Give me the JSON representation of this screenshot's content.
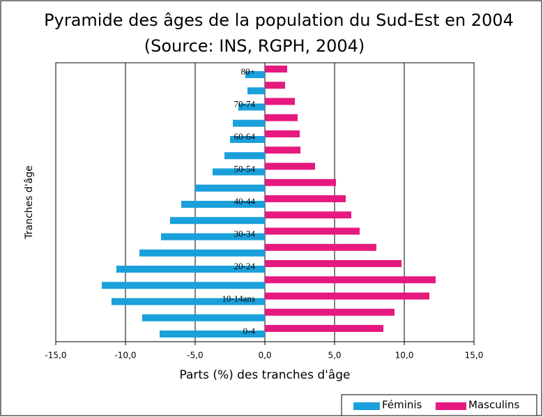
{
  "chart_data": {
    "type": "bar",
    "orientation": "horizontal",
    "stacked": false,
    "title": "Pyramide des âges de la population du Sud-Est en 2004",
    "subtitle": "(Source: INS, RGPH, 2004)",
    "x_label": "Parts (%) des tranches d'âge",
    "y_label": "Tranches d'âge",
    "categories": [
      "0-4",
      null,
      "10-14ans",
      null,
      "20-24",
      null,
      "30-34",
      null,
      "40-44",
      null,
      "50-54",
      null,
      "60-64",
      null,
      "70-74",
      null,
      "80+"
    ],
    "series": [
      {
        "name": "Féminis",
        "color": "#1aa0db",
        "values": [
          -7.55,
          -8.8,
          -11.0,
          -11.7,
          -10.65,
          -9.0,
          -7.45,
          -6.8,
          -6.0,
          -5.0,
          -3.75,
          -2.9,
          -2.5,
          -2.3,
          -1.9,
          -1.25,
          -1.4
        ]
      },
      {
        "name": "Masculins",
        "color": "#e6197f",
        "values": [
          8.5,
          9.3,
          11.8,
          12.25,
          9.8,
          8.0,
          6.8,
          6.2,
          5.8,
          5.1,
          3.6,
          2.55,
          2.5,
          2.35,
          2.15,
          1.45,
          1.6
        ]
      }
    ],
    "xlim": [
      -15,
      15
    ],
    "xticks": [
      {
        "value": -15,
        "label": "-15,0"
      },
      {
        "value": -10,
        "label": "-10,0"
      },
      {
        "value": -5,
        "label": "-5,0"
      },
      {
        "value": 0,
        "label": "0,0"
      },
      {
        "value": 5,
        "label": "5,0"
      },
      {
        "value": 10,
        "label": "10,0"
      },
      {
        "value": 15,
        "label": "15,0"
      }
    ],
    "grid": true,
    "legend": "bottom-right"
  }
}
